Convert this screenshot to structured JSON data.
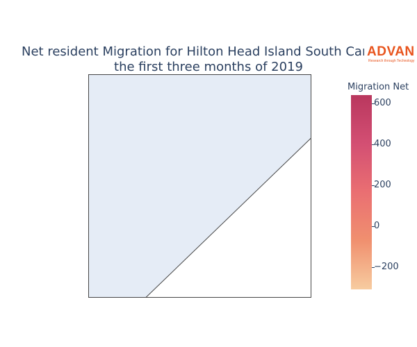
{
  "title": {
    "line1": "Net resident Migration for Hilton Head Island South Caroli",
    "line2": "the first three months of 2019"
  },
  "logo": {
    "word": "ADVAN",
    "tagline": "Research through Technology"
  },
  "colorbar": {
    "title": "Migration Net",
    "min": -310,
    "max": 640,
    "colors": [
      "#f7cca0",
      "#f0906f",
      "#ea6f72",
      "#d34f73",
      "#b9375e"
    ],
    "ticks": [
      600,
      400,
      200,
      0,
      -200
    ],
    "tick_labels": [
      "600",
      "400",
      "200",
      "0",
      "−200"
    ]
  },
  "map": {
    "water_color": "#e5ecf6",
    "land_color": "#ffffff",
    "border_color": "#444444"
  }
}
